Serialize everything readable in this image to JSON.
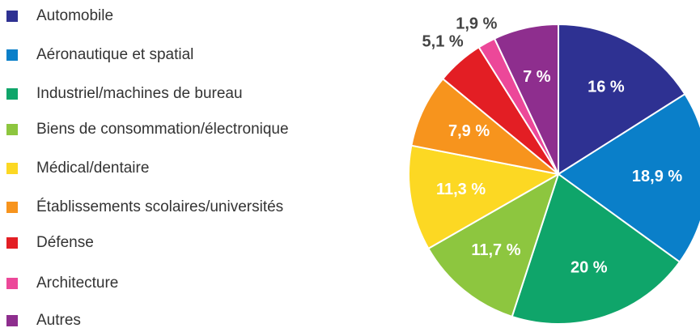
{
  "chart_data": {
    "type": "pie",
    "categories": [
      "Automobile",
      "Aéronautique et spatial",
      "Industriel/machines de bureau",
      "Biens de consommation/électronique",
      "Médical/dentaire",
      "Établissements scolaires/universités",
      "Défense",
      "Architecture",
      "Autres"
    ],
    "values": [
      16,
      18.9,
      20,
      11.7,
      11.3,
      7.9,
      5.1,
      1.9,
      7
    ],
    "value_labels": [
      "16 %",
      "18,9 %",
      "20 %",
      "11,7 %",
      "11,3 %",
      "7,9 %",
      "5,1 %",
      "1,9 %",
      "7 %"
    ],
    "colors": [
      "#2e3192",
      "#0a7fc9",
      "#0fa56a",
      "#8dc63f",
      "#fcd823",
      "#f7941d",
      "#e31e24",
      "#ec4899",
      "#8e2e8e"
    ],
    "legend": "left"
  }
}
